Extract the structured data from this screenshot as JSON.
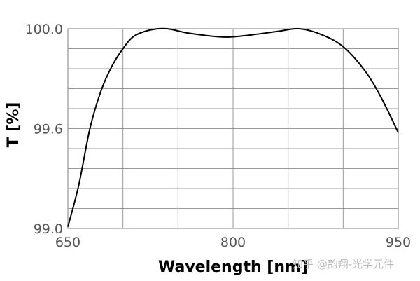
{
  "chart_data": {
    "type": "line",
    "title": "",
    "xlabel": "Wavelength [nm]",
    "ylabel": "T [%]",
    "xlim": [
      650,
      950
    ],
    "x_ticks": [
      650,
      800,
      950
    ],
    "x_tick_labels": [
      "650",
      "800",
      "950"
    ],
    "x_grid_step": 50,
    "ylim": [
      99.0,
      100.0
    ],
    "y_scale_segments": [
      [
        99.0,
        99.6,
        5
      ],
      [
        99.6,
        100.0,
        5
      ]
    ],
    "y_ticks": [
      99.0,
      99.6,
      100.0
    ],
    "y_tick_labels": [
      "99.0",
      "99.6",
      "100.0"
    ],
    "grid": true,
    "series": [
      {
        "name": "T",
        "color": "#000000",
        "x": [
          650,
          660,
          670,
          680,
          690,
          700,
          710,
          725,
          740,
          760,
          790,
          810,
          840,
          860,
          880,
          900,
          920,
          935,
          950
        ],
        "y": [
          99.01,
          99.264,
          99.6,
          99.75,
          99.85,
          99.92,
          99.97,
          99.995,
          100.0,
          99.982,
          99.967,
          99.972,
          99.989,
          100.0,
          99.977,
          99.928,
          99.83,
          99.72,
          99.576
        ]
      }
    ]
  },
  "watermark": "知乎 @韵翔-光学元件"
}
